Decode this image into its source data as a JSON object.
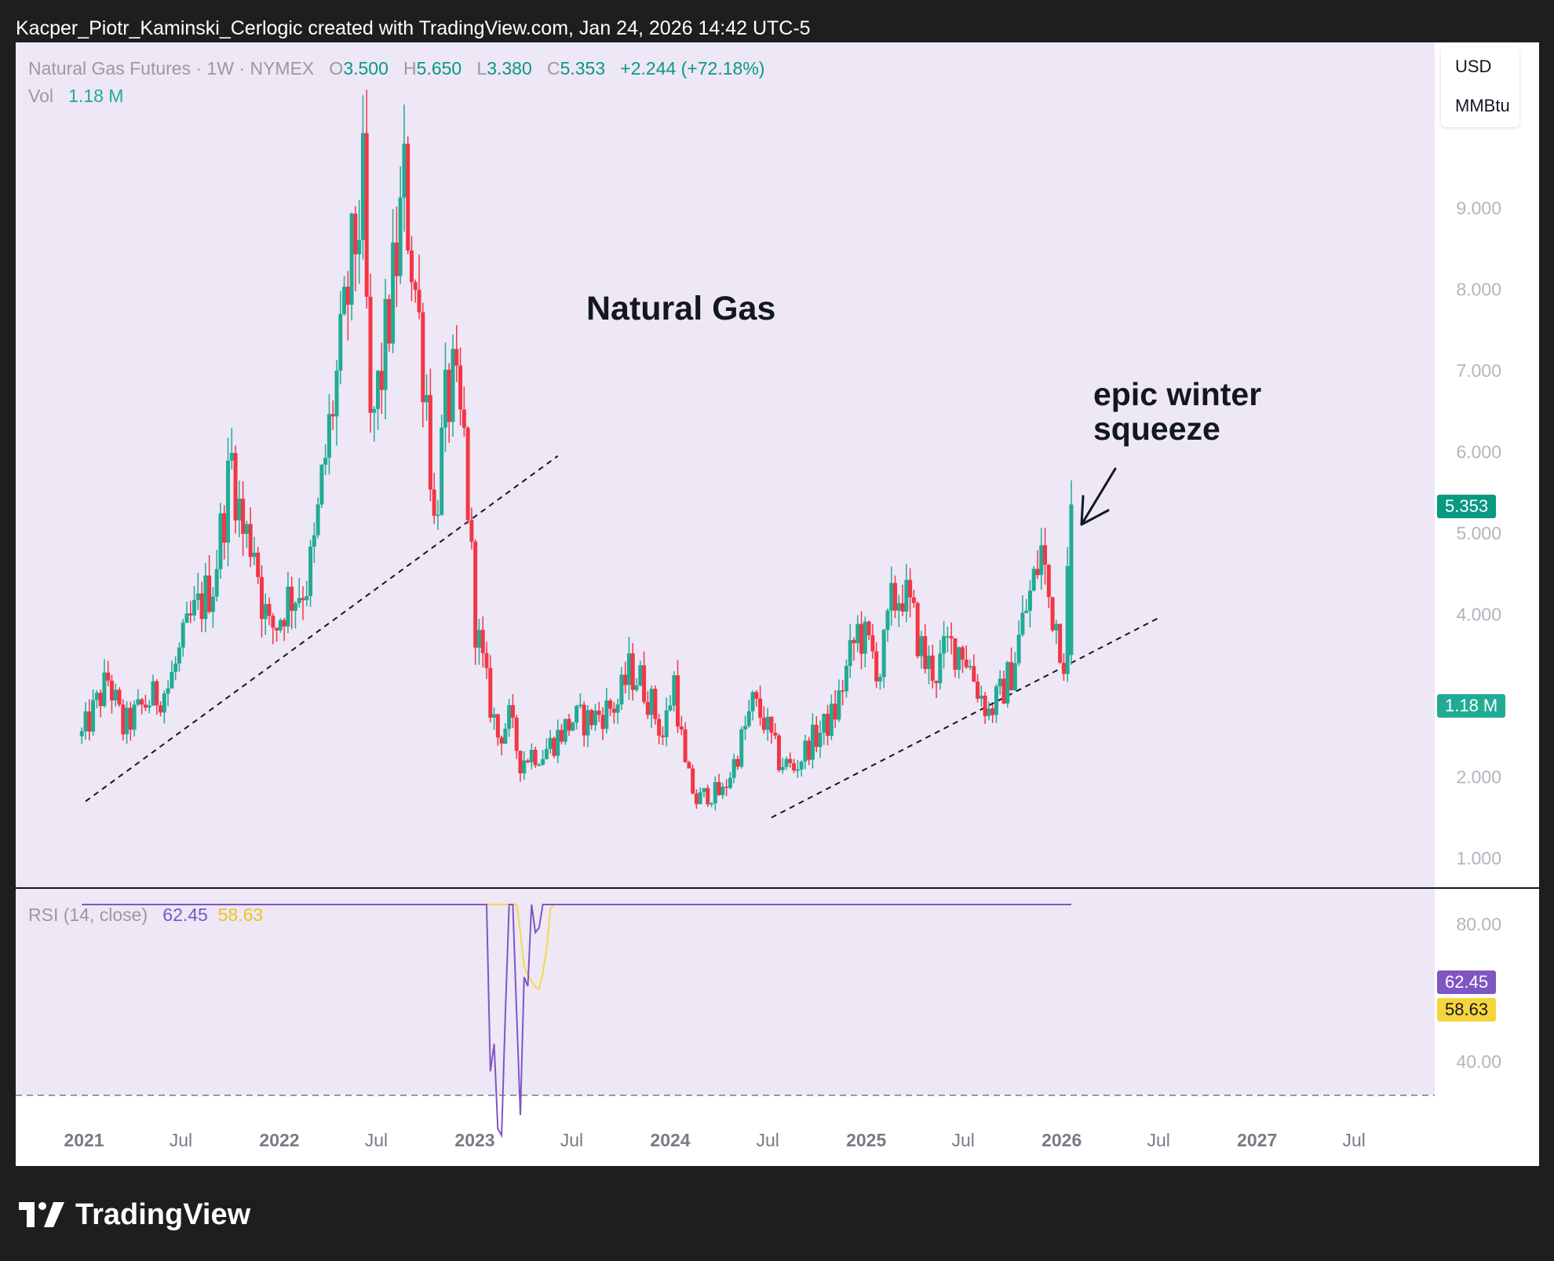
{
  "header": {
    "credit": "Kacper_Piotr_Kaminski_Cerlogic created with TradingView.com, Jan 24, 2026 14:42 UTC-5"
  },
  "legend": {
    "symbol": "Natural Gas Futures · 1W · NYMEX",
    "o_label": "O",
    "o": "3.500",
    "h_label": "H",
    "h": "5.650",
    "l_label": "L",
    "l": "3.380",
    "c_label": "C",
    "c": "5.353",
    "change": "+2.244 (+72.18%)",
    "vol_label": "Vol",
    "vol": "1.18 M"
  },
  "units": {
    "currency": "USD",
    "unit": "MMBtu"
  },
  "title": "Natural Gas",
  "annotation": {
    "line1": "epic winter",
    "line2": "squeeze"
  },
  "rsi_legend": {
    "label": "RSI (14, close)",
    "rsi": "62.45",
    "ma": "58.63"
  },
  "price_tags": {
    "last": "5.353",
    "volume": "1.18 M",
    "rsi": "62.45",
    "rsi_ma": "58.63"
  },
  "footer": {
    "brand": "TradingView"
  },
  "colors": {
    "up": "#22ab94",
    "down": "#f23645",
    "rsi": "#7e57c2",
    "rsi_ma": "#f5d84a",
    "band": "#ede7f6"
  },
  "chart_data": {
    "type": "candlestick",
    "interval": "1W",
    "y_axis": {
      "ticks": [
        "1.000",
        "2.000",
        "4.000",
        "5.000",
        "6.000",
        "7.000",
        "8.000",
        "9.000"
      ],
      "scale": "linear"
    },
    "x_axis": {
      "ticks": [
        "2021",
        "Jul",
        "2022",
        "Jul",
        "2023",
        "Jul",
        "2024",
        "Jul",
        "2025",
        "Jul",
        "2026",
        "Jul",
        "2027",
        "Jul"
      ]
    },
    "rsi_axis": {
      "ticks": [
        "80.00",
        "40.00"
      ],
      "bands": [
        70,
        50,
        30
      ]
    },
    "price_anchors": [
      [
        "2020-12-28",
        2.5
      ],
      [
        "2021-02-15",
        3.2
      ],
      [
        "2021-03-15",
        2.6
      ],
      [
        "2021-04-26",
        2.9
      ],
      [
        "2021-06-07",
        3.1
      ],
      [
        "2021-07-19",
        3.9
      ],
      [
        "2021-08-30",
        4.4
      ],
      [
        "2021-10-04",
        5.9
      ],
      [
        "2021-10-25",
        5.0
      ],
      [
        "2021-11-15",
        4.9
      ],
      [
        "2021-11-29",
        4.2
      ],
      [
        "2021-12-13",
        3.8
      ],
      [
        "2021-12-27",
        3.9
      ],
      [
        "2022-01-17",
        4.2
      ],
      [
        "2022-02-07",
        4.3
      ],
      [
        "2022-02-21",
        4.4
      ],
      [
        "2022-03-07",
        4.8
      ],
      [
        "2022-03-21",
        5.6
      ],
      [
        "2022-04-11",
        6.6
      ],
      [
        "2022-04-25",
        7.2
      ],
      [
        "2022-05-16",
        8.3
      ],
      [
        "2022-06-06",
        9.2
      ],
      [
        "2022-06-20",
        6.2
      ],
      [
        "2022-07-11",
        7.0
      ],
      [
        "2022-08-08",
        8.4
      ],
      [
        "2022-08-22",
        9.3
      ],
      [
        "2022-09-12",
        8.0
      ],
      [
        "2022-10-03",
        6.7
      ],
      [
        "2022-10-17",
        5.1
      ],
      [
        "2022-11-07",
        6.5
      ],
      [
        "2022-11-21",
        6.8
      ],
      [
        "2022-12-12",
        6.1
      ],
      [
        "2023-01-02",
        3.9
      ],
      [
        "2023-01-23",
        3.1
      ],
      [
        "2023-02-13",
        2.5
      ],
      [
        "2023-03-06",
        2.7
      ],
      [
        "2023-03-27",
        2.2
      ],
      [
        "2023-04-17",
        2.3
      ],
      [
        "2023-05-08",
        2.3
      ],
      [
        "2023-06-05",
        2.5
      ],
      [
        "2023-07-03",
        2.7
      ],
      [
        "2023-07-31",
        2.7
      ],
      [
        "2023-08-28",
        2.8
      ],
      [
        "2023-09-25",
        2.9
      ],
      [
        "2023-10-16",
        3.3
      ],
      [
        "2023-11-06",
        3.2
      ],
      [
        "2023-11-27",
        2.9
      ],
      [
        "2023-12-18",
        2.5
      ],
      [
        "2024-01-08",
        3.2
      ],
      [
        "2024-01-29",
        2.1
      ],
      [
        "2024-02-19",
        1.7
      ],
      [
        "2024-03-11",
        1.8
      ],
      [
        "2024-04-08",
        1.8
      ],
      [
        "2024-05-06",
        2.3
      ],
      [
        "2024-06-03",
        2.9
      ],
      [
        "2024-06-24",
        2.7
      ],
      [
        "2024-07-22",
        2.2
      ],
      [
        "2024-08-19",
        2.1
      ],
      [
        "2024-09-16",
        2.4
      ],
      [
        "2024-10-14",
        2.6
      ],
      [
        "2024-11-04",
        2.8
      ],
      [
        "2024-11-25",
        3.3
      ],
      [
        "2024-12-16",
        3.8
      ],
      [
        "2025-01-06",
        3.6
      ],
      [
        "2025-01-27",
        3.3
      ],
      [
        "2025-02-17",
        4.1
      ],
      [
        "2025-03-10",
        4.3
      ],
      [
        "2025-03-31",
        3.9
      ],
      [
        "2025-04-21",
        3.4
      ],
      [
        "2025-05-12",
        3.3
      ],
      [
        "2025-06-02",
        3.6
      ],
      [
        "2025-06-30",
        3.6
      ],
      [
        "2025-07-28",
        3.1
      ],
      [
        "2025-08-18",
        2.8
      ],
      [
        "2025-09-08",
        3.0
      ],
      [
        "2025-09-29",
        3.3
      ],
      [
        "2025-10-20",
        3.9
      ],
      [
        "2025-11-10",
        4.4
      ],
      [
        "2025-11-24",
        4.8
      ],
      [
        "2025-12-08",
        4.2
      ],
      [
        "2025-12-22",
        3.9
      ],
      [
        "2026-01-05",
        3.5
      ],
      [
        "2026-01-19",
        5.353
      ]
    ],
    "last_candle": {
      "date": "2026-01-19",
      "open": 3.5,
      "high": 5.65,
      "low": 3.38,
      "close": 5.353
    },
    "trendlines": [
      {
        "from": [
          "2021-01-04",
          1.7
        ],
        "to": [
          "2023-06-05",
          5.95
        ]
      },
      {
        "from": [
          "2024-07-08",
          1.5
        ],
        "to": [
          "2026-06-29",
          3.95
        ]
      }
    ]
  }
}
